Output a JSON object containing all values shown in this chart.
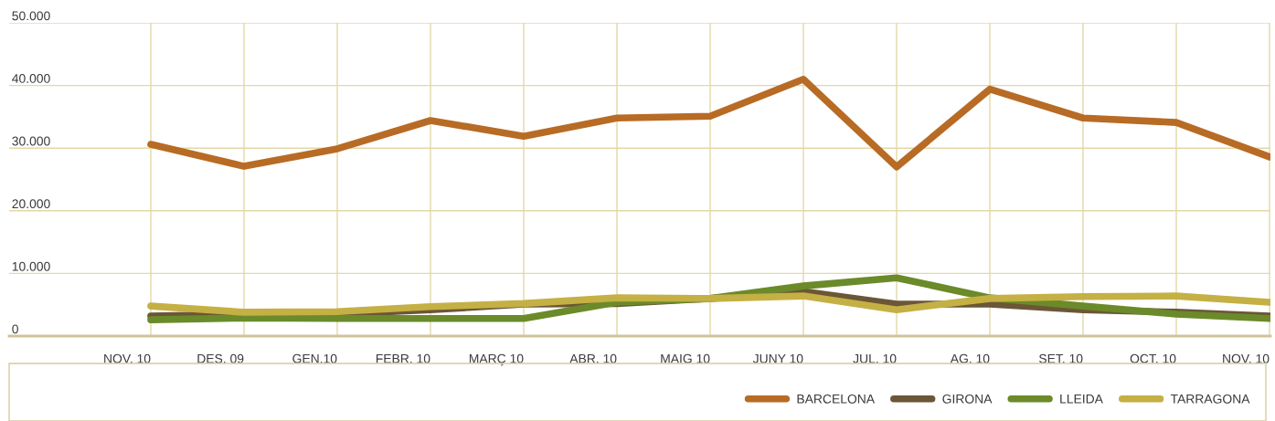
{
  "chart_data": {
    "type": "line",
    "categories": [
      "NOV. 10",
      "DES. 09",
      "GEN.10",
      "FEBR. 10",
      "MARÇ 10",
      "ABR. 10",
      "MAIG 10",
      "JUNY 10",
      "JUL. 10",
      "AG. 10",
      "SET. 10",
      "OCT. 10",
      "NOV. 10"
    ],
    "series": [
      {
        "name": "BARCELONA",
        "color": "#b86b25",
        "values": [
          30600,
          27100,
          29900,
          34400,
          31900,
          34800,
          35100,
          41000,
          27000,
          39400,
          34800,
          34100,
          28600
        ]
      },
      {
        "name": "GIRONA",
        "color": "#6b5637",
        "values": [
          3200,
          3500,
          3500,
          4200,
          5100,
          5200,
          6000,
          7100,
          5100,
          5100,
          4200,
          3800,
          3200
        ]
      },
      {
        "name": "LLEIDA",
        "color": "#6b8a2a",
        "values": [
          2600,
          2900,
          2800,
          2800,
          2800,
          5400,
          6000,
          8000,
          9300,
          6100,
          4800,
          3500,
          2800
        ]
      },
      {
        "name": "TARRAGONA",
        "color": "#c4b044",
        "values": [
          4800,
          3800,
          3900,
          4700,
          5200,
          6100,
          6000,
          6400,
          4200,
          6000,
          6300,
          6400,
          5400
        ]
      }
    ],
    "ylim": [
      0,
      50000
    ],
    "yticks": [
      {
        "value": 0,
        "label": "0"
      },
      {
        "value": 10000,
        "label": "10.000"
      },
      {
        "value": 20000,
        "label": "20.000"
      },
      {
        "value": 30000,
        "label": "30.000"
      },
      {
        "value": 40000,
        "label": "40.000"
      },
      {
        "value": 50000,
        "label": "50.000"
      }
    ],
    "grid": true,
    "legend": "bottom",
    "marker": "none",
    "line_style": "solid"
  }
}
